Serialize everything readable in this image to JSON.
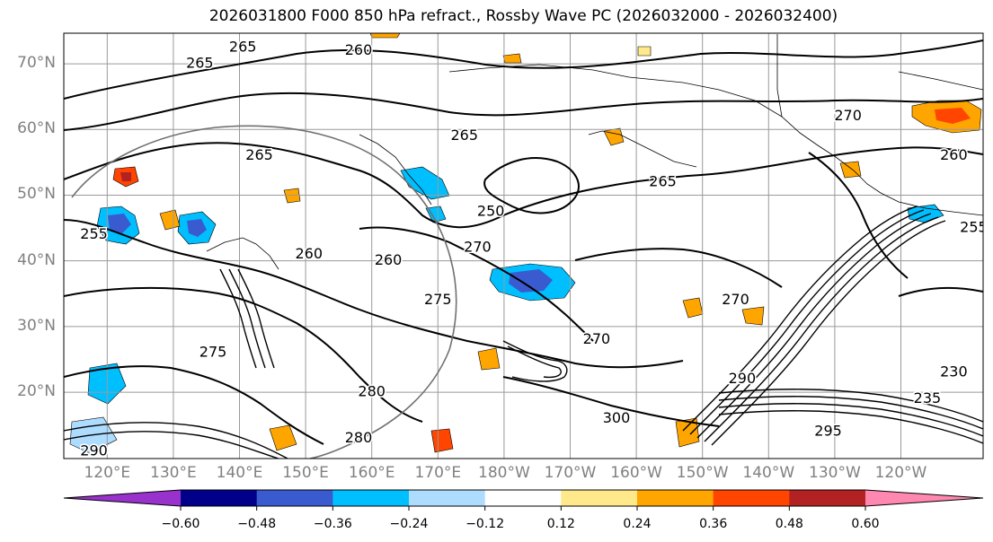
{
  "title": "2026031800 F000 850 hPa refract., Rossby Wave PC (2026032000 - 2026032400)",
  "map": {
    "lat_labels": [
      "70°N",
      "60°N",
      "50°N",
      "40°N",
      "30°N",
      "20°N"
    ],
    "lat_values": [
      70,
      60,
      50,
      40,
      30,
      20
    ],
    "lon_labels": [
      "120°E",
      "130°E",
      "140°E",
      "150°E",
      "160°E",
      "170°E",
      "180°W",
      "170°W",
      "160°W",
      "150°W",
      "140°W",
      "130°W",
      "120°W"
    ],
    "lon_values": [
      120,
      130,
      140,
      150,
      160,
      170,
      180,
      190,
      200,
      210,
      220,
      230,
      240
    ],
    "contour_labels": [
      {
        "text": "265",
        "lon": 140.5,
        "lat": 72.5
      },
      {
        "text": "260",
        "lon": 158,
        "lat": 72
      },
      {
        "text": "265",
        "lon": 134,
        "lat": 70
      },
      {
        "text": "265",
        "lon": 143,
        "lat": 56
      },
      {
        "text": "265",
        "lon": 174,
        "lat": 59
      },
      {
        "text": "250",
        "lon": 178,
        "lat": 47.5
      },
      {
        "text": "265",
        "lon": 204,
        "lat": 52
      },
      {
        "text": "270",
        "lon": 232,
        "lat": 62
      },
      {
        "text": "260",
        "lon": 248,
        "lat": 56
      },
      {
        "text": "260",
        "lon": 150.5,
        "lat": 41
      },
      {
        "text": "260",
        "lon": 162.5,
        "lat": 40
      },
      {
        "text": "270",
        "lon": 176,
        "lat": 42
      },
      {
        "text": "275",
        "lon": 170,
        "lat": 34
      },
      {
        "text": "255",
        "lon": 118,
        "lat": 44
      },
      {
        "text": "270",
        "lon": 194,
        "lat": 28
      },
      {
        "text": "270",
        "lon": 215,
        "lat": 34
      },
      {
        "text": "280",
        "lon": 160,
        "lat": 20
      },
      {
        "text": "290",
        "lon": 216,
        "lat": 22
      },
      {
        "text": "300",
        "lon": 197,
        "lat": 16
      },
      {
        "text": "280",
        "lon": 158,
        "lat": 13
      },
      {
        "text": "295",
        "lon": 229,
        "lat": 14
      },
      {
        "text": "235",
        "lon": 244,
        "lat": 19
      },
      {
        "text": "230",
        "lon": 248,
        "lat": 23
      },
      {
        "text": "275",
        "lon": 136,
        "lat": 26
      },
      {
        "text": "255",
        "lon": 251,
        "lat": 45
      },
      {
        "text": "290",
        "lon": 118,
        "lat": 11
      }
    ]
  },
  "colorbar": {
    "colors": [
      "#9932CC",
      "#00008B",
      "#3A5BCF",
      "#00BFFF",
      "#ADDCFF",
      "#FFFFFF",
      "#FFE98A",
      "#FFA500",
      "#FF4500",
      "#B22222",
      "#FF88B0"
    ],
    "tick_labels": [
      "−0.60",
      "−0.48",
      "−0.36",
      "−0.24",
      "−0.12",
      "0.12",
      "0.24",
      "0.36",
      "0.48",
      "0.60"
    ],
    "tick_values": [
      -0.6,
      -0.48,
      -0.36,
      -0.24,
      -0.12,
      0.12,
      0.24,
      0.36,
      0.48,
      0.6
    ]
  }
}
